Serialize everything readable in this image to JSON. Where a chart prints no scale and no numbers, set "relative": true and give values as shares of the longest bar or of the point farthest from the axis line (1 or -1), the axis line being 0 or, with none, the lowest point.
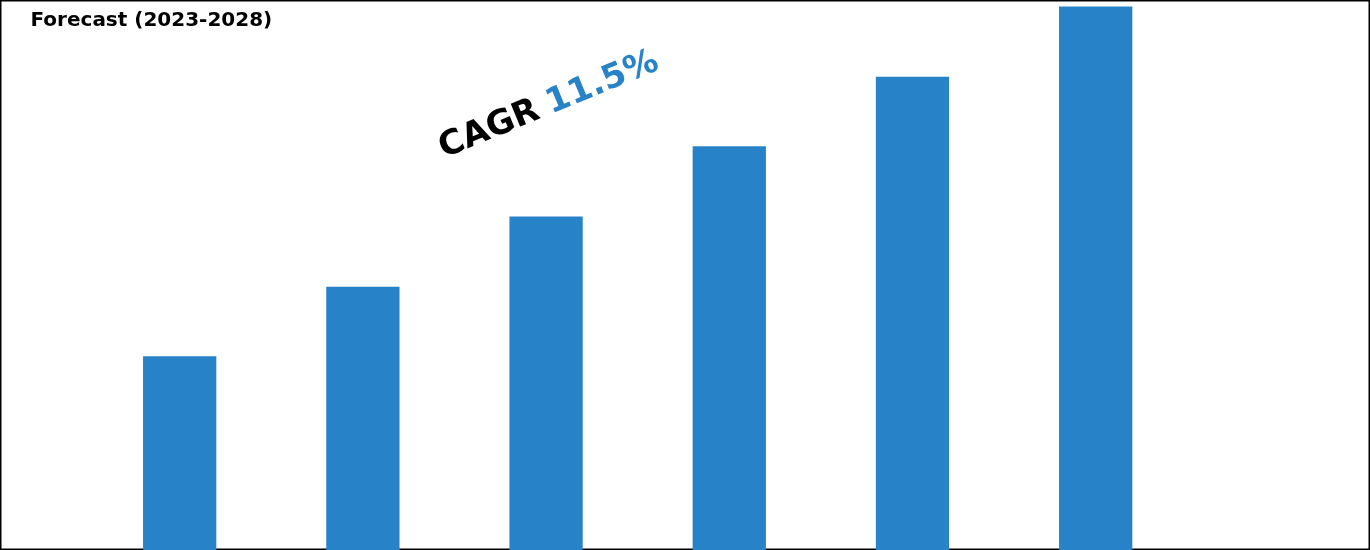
{
  "chart_data": {
    "type": "bar",
    "title": "Forecast (2023-2028)",
    "categories": [
      null,
      null,
      null,
      null,
      null,
      null
    ],
    "values": [
      0.357,
      0.485,
      0.614,
      0.743,
      0.871,
      1.0
    ],
    "color": "#2882c8",
    "relative": true,
    "annotations": [
      "CAGR 11.5%"
    ]
  }
}
